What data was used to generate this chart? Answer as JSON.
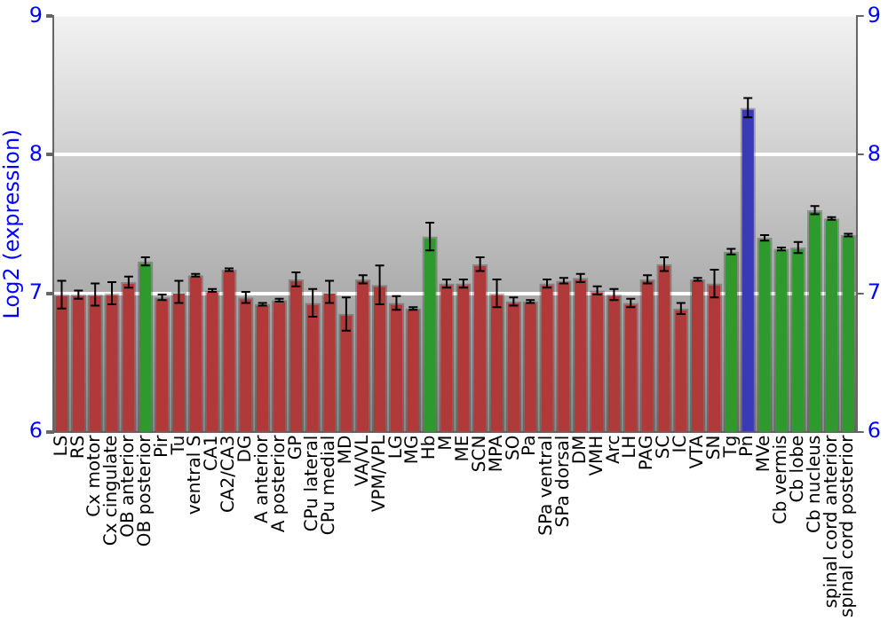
{
  "chart_data": {
    "type": "bar",
    "ylabel": "Log2 (expression)",
    "categories": [
      "LS",
      "RS",
      "Cx motor",
      "Cx cingulate",
      "OB anterior",
      "OB posterior",
      "Pir",
      "Tu",
      "ventral S",
      "CA1",
      "CA2/CA3",
      "DG",
      "A anterior",
      "A posterior",
      "GP",
      "CPu lateral",
      "CPu medial",
      "MD",
      "VA/VL",
      "VPM/VPL",
      "LG",
      "MG",
      "Hb",
      "M",
      "ME",
      "SCN",
      "MPA",
      "SO",
      "Pa",
      "SPa ventral",
      "SPa dorsal",
      "DM",
      "VMH",
      "Arc",
      "LH",
      "PAG",
      "SC",
      "IC",
      "VTA",
      "SN",
      "Tg",
      "Pn",
      "MVe",
      "Cb vermis",
      "Cb lobe",
      "Cb nucleus",
      "spinal cord anterior",
      "spinal cord posterior"
    ],
    "values": [
      6.99,
      6.99,
      6.99,
      7.0,
      7.08,
      7.23,
      6.97,
      7.01,
      7.13,
      7.02,
      7.17,
      6.97,
      6.92,
      6.95,
      7.1,
      6.93,
      7.01,
      6.85,
      7.1,
      7.06,
      6.93,
      6.89,
      7.41,
      7.07,
      7.07,
      7.21,
      7.0,
      6.94,
      6.94,
      7.07,
      7.09,
      7.11,
      7.02,
      6.99,
      6.93,
      7.1,
      7.21,
      6.89,
      7.1,
      7.07,
      7.3,
      8.34,
      7.4,
      7.32,
      7.33,
      7.6,
      7.54,
      7.42
    ],
    "errors": [
      0.1,
      0.03,
      0.08,
      0.08,
      0.04,
      0.03,
      0.02,
      0.08,
      0.01,
      0.01,
      0.01,
      0.04,
      0.01,
      0.01,
      0.05,
      0.1,
      0.08,
      0.12,
      0.03,
      0.14,
      0.05,
      0.01,
      0.1,
      0.03,
      0.03,
      0.05,
      0.1,
      0.03,
      0.01,
      0.03,
      0.02,
      0.03,
      0.03,
      0.04,
      0.03,
      0.03,
      0.05,
      0.04,
      0.01,
      0.1,
      0.02,
      0.07,
      0.02,
      0.01,
      0.04,
      0.03,
      0.01,
      0.01
    ],
    "colors": [
      "#b03a3a",
      "#b03a3a",
      "#b03a3a",
      "#b03a3a",
      "#b03a3a",
      "#2e9a2e",
      "#b03a3a",
      "#b03a3a",
      "#b03a3a",
      "#b03a3a",
      "#b03a3a",
      "#b03a3a",
      "#b03a3a",
      "#b03a3a",
      "#b03a3a",
      "#b03a3a",
      "#b03a3a",
      "#b03a3a",
      "#b03a3a",
      "#b03a3a",
      "#b03a3a",
      "#b03a3a",
      "#2e9a2e",
      "#b03a3a",
      "#b03a3a",
      "#b03a3a",
      "#b03a3a",
      "#b03a3a",
      "#b03a3a",
      "#b03a3a",
      "#b03a3a",
      "#b03a3a",
      "#b03a3a",
      "#b03a3a",
      "#b03a3a",
      "#b03a3a",
      "#b03a3a",
      "#b03a3a",
      "#b03a3a",
      "#b03a3a",
      "#2e9a2e",
      "#3a3ab8",
      "#2e9a2e",
      "#2e9a2e",
      "#2e9a2e",
      "#2e9a2e",
      "#2e9a2e",
      "#2e9a2e"
    ],
    "ylim": [
      6,
      9
    ],
    "yticks": [
      6,
      7,
      8,
      9
    ],
    "y2lim": [
      6,
      9
    ],
    "y2ticks": [
      6,
      7,
      8,
      9
    ],
    "grid": "y",
    "legend": false
  }
}
